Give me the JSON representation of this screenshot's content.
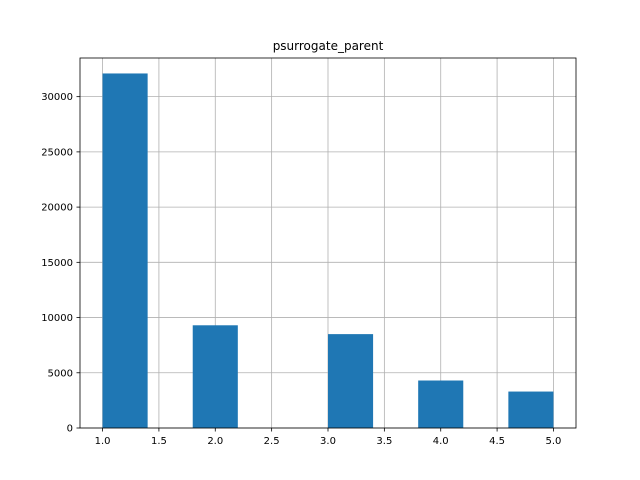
{
  "chart_data": {
    "type": "bar",
    "title": "psurrogate_parent",
    "xlabel": "",
    "ylabel": "",
    "grid": true,
    "bar_color": "#1f77b4",
    "xlim": [
      0.8,
      5.2
    ],
    "ylim": [
      0,
      33500
    ],
    "x_ticks": [
      1.0,
      1.5,
      2.0,
      2.5,
      3.0,
      3.5,
      4.0,
      4.5,
      5.0
    ],
    "x_tick_labels": [
      "1.0",
      "1.5",
      "2.0",
      "2.5",
      "3.0",
      "3.5",
      "4.0",
      "4.5",
      "5.0"
    ],
    "y_ticks": [
      0,
      5000,
      10000,
      15000,
      20000,
      25000,
      30000
    ],
    "y_tick_labels": [
      "0",
      "5000",
      "10000",
      "15000",
      "20000",
      "25000",
      "30000"
    ],
    "bins": [
      {
        "x0": 1.0,
        "x1": 1.4,
        "value": 32100
      },
      {
        "x0": 1.4,
        "x1": 1.8,
        "value": 0
      },
      {
        "x0": 1.8,
        "x1": 2.2,
        "value": 9300
      },
      {
        "x0": 2.2,
        "x1": 2.6,
        "value": 0
      },
      {
        "x0": 2.6,
        "x1": 3.0,
        "value": 0
      },
      {
        "x0": 3.0,
        "x1": 3.4,
        "value": 8500
      },
      {
        "x0": 3.4,
        "x1": 3.8,
        "value": 0
      },
      {
        "x0": 3.8,
        "x1": 4.2,
        "value": 4300
      },
      {
        "x0": 4.2,
        "x1": 4.6,
        "value": 0
      },
      {
        "x0": 4.6,
        "x1": 5.0,
        "value": 3300
      }
    ]
  }
}
